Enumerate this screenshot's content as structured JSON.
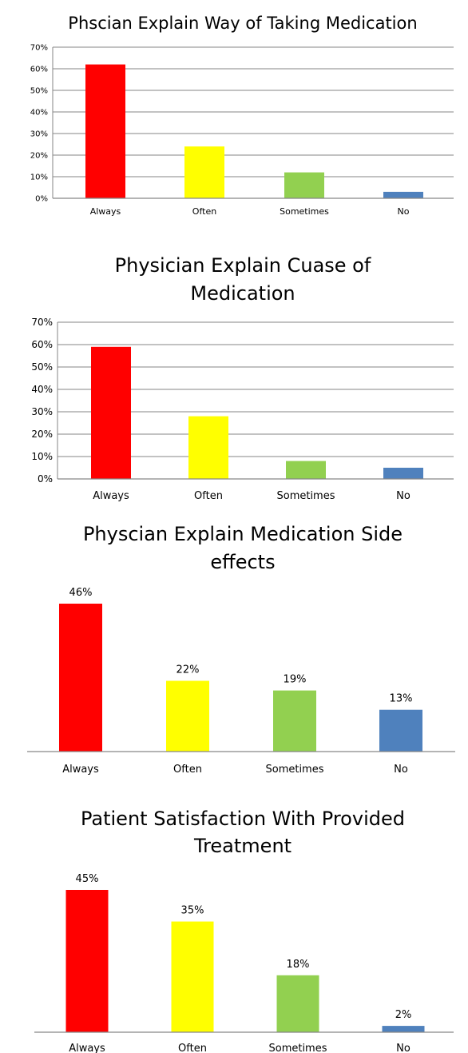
{
  "chart_data": [
    {
      "type": "bar",
      "title_lines": [
        "Phscian Explain Way of Taking Medication"
      ],
      "categories": [
        "Always",
        "Often",
        "Sometimes",
        "No"
      ],
      "values": [
        0.62,
        0.24,
        0.12,
        0.03
      ],
      "colors": [
        "#ff0000",
        "#ffff00",
        "#92d050",
        "#4f81bd"
      ],
      "yticks": [
        "0%",
        "10%",
        "20%",
        "30%",
        "40%",
        "50%",
        "60%",
        "70%"
      ],
      "ylim": [
        0,
        0.7
      ],
      "grid": true,
      "data_labels": []
    },
    {
      "type": "bar",
      "title_lines": [
        "Physician Explain Cuase of",
        "Medication"
      ],
      "categories": [
        "Always",
        "Often",
        "Sometimes",
        "No"
      ],
      "values": [
        0.59,
        0.28,
        0.08,
        0.05
      ],
      "colors": [
        "#ff0000",
        "#ffff00",
        "#92d050",
        "#4f81bd"
      ],
      "yticks": [
        "0%",
        "10%",
        "20%",
        "30%",
        "40%",
        "50%",
        "60%",
        "70%"
      ],
      "ylim": [
        0,
        0.7
      ],
      "grid": true,
      "data_labels": []
    },
    {
      "type": "bar",
      "title_lines": [
        "Physcian  Explain Medication Side",
        "effects"
      ],
      "categories": [
        "Always",
        "Often",
        "Sometimes",
        "No"
      ],
      "values": [
        0.46,
        0.22,
        0.19,
        0.13
      ],
      "colors": [
        "#ff0000",
        "#ffff00",
        "#92d050",
        "#4f81bd"
      ],
      "yticks": [],
      "ylim": [
        0,
        0.5
      ],
      "grid": false,
      "data_labels": [
        "46%",
        "22%",
        "19%",
        "13%"
      ]
    },
    {
      "type": "bar",
      "title_lines": [
        "Patient Satisfaction With Provided",
        "Treatment"
      ],
      "categories": [
        "Always",
        "Often",
        "Sometimes",
        "No"
      ],
      "values": [
        0.45,
        0.35,
        0.18,
        0.02
      ],
      "colors": [
        "#ff0000",
        "#ffff00",
        "#92d050",
        "#4f81bd"
      ],
      "yticks": [],
      "ylim": [
        0,
        0.5
      ],
      "grid": false,
      "data_labels": [
        "45%",
        "35%",
        "18%",
        "2%"
      ]
    }
  ]
}
